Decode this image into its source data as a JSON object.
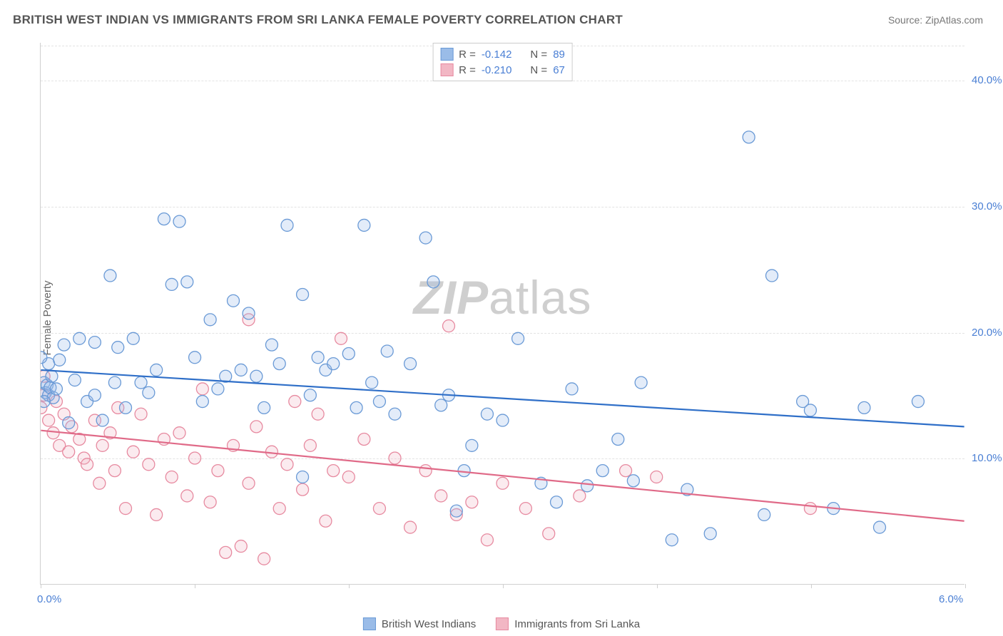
{
  "header": {
    "title": "BRITISH WEST INDIAN VS IMMIGRANTS FROM SRI LANKA FEMALE POVERTY CORRELATION CHART",
    "source": "Source: ZipAtlas.com"
  },
  "watermark": {
    "prefix": "ZIP",
    "suffix": "atlas"
  },
  "chart": {
    "type": "scatter",
    "background_color": "#ffffff",
    "grid_color": "#e3e3e3",
    "axis_color": "#cfcfcf",
    "tick_label_color": "#4a7fd4",
    "ylabel": "Female Poverty",
    "ylabel_color": "#666666",
    "label_fontsize": 15,
    "title_fontsize": 17,
    "xlim": [
      0.0,
      6.0
    ],
    "ylim": [
      0.0,
      43.0
    ],
    "yticks": [
      10.0,
      20.0,
      30.0,
      40.0
    ],
    "ytick_labels": [
      "10.0%",
      "20.0%",
      "30.0%",
      "40.0%"
    ],
    "xticks_minor": [
      0.0,
      1.0,
      2.0,
      3.0,
      4.0,
      5.0,
      6.0
    ],
    "xtick_labels": {
      "left": "0.0%",
      "right": "6.0%"
    },
    "marker_radius": 8.5,
    "marker_stroke_width": 1.3,
    "marker_fill_opacity": 0.28,
    "line_width": 2.2
  },
  "series": [
    {
      "name": "British West Indians",
      "color_fill": "#9abce8",
      "color_stroke": "#6a9ad6",
      "line_color": "#2f6fc8",
      "R": "-0.142",
      "N": "89",
      "trend": {
        "x1": 0.0,
        "y1": 17.0,
        "x2": 6.0,
        "y2": 12.5
      },
      "points": [
        [
          0.02,
          16.0
        ],
        [
          0.03,
          15.2
        ],
        [
          0.04,
          15.8
        ],
        [
          0.05,
          15.0
        ],
        [
          0.06,
          15.6
        ],
        [
          0.07,
          16.5
        ],
        [
          0.08,
          14.8
        ],
        [
          0.05,
          17.5
        ],
        [
          0.1,
          15.5
        ],
        [
          0.15,
          19.0
        ],
        [
          0.18,
          12.8
        ],
        [
          0.25,
          19.5
        ],
        [
          0.3,
          14.5
        ],
        [
          0.35,
          19.2
        ],
        [
          0.4,
          13.0
        ],
        [
          0.45,
          24.5
        ],
        [
          0.5,
          18.8
        ],
        [
          0.55,
          14.0
        ],
        [
          0.6,
          19.5
        ],
        [
          0.65,
          16.0
        ],
        [
          0.7,
          15.2
        ],
        [
          0.8,
          29.0
        ],
        [
          0.85,
          23.8
        ],
        [
          0.9,
          28.8
        ],
        [
          0.95,
          24.0
        ],
        [
          1.0,
          18.0
        ],
        [
          1.05,
          14.5
        ],
        [
          1.1,
          21.0
        ],
        [
          1.15,
          15.5
        ],
        [
          1.2,
          16.5
        ],
        [
          1.25,
          22.5
        ],
        [
          1.3,
          17.0
        ],
        [
          1.35,
          21.5
        ],
        [
          1.4,
          16.5
        ],
        [
          1.45,
          14.0
        ],
        [
          1.55,
          17.5
        ],
        [
          1.6,
          28.5
        ],
        [
          1.7,
          23.0
        ],
        [
          1.75,
          15.0
        ],
        [
          1.8,
          18.0
        ],
        [
          1.85,
          17.0
        ],
        [
          1.7,
          8.5
        ],
        [
          1.9,
          17.5
        ],
        [
          2.0,
          18.3
        ],
        [
          2.05,
          14.0
        ],
        [
          2.1,
          28.5
        ],
        [
          2.15,
          16.0
        ],
        [
          2.25,
          18.5
        ],
        [
          2.3,
          13.5
        ],
        [
          2.4,
          17.5
        ],
        [
          2.5,
          27.5
        ],
        [
          2.55,
          24.0
        ],
        [
          2.6,
          14.2
        ],
        [
          2.65,
          15.0
        ],
        [
          2.7,
          5.8
        ],
        [
          2.75,
          9.0
        ],
        [
          2.8,
          11.0
        ],
        [
          2.9,
          13.5
        ],
        [
          3.0,
          13.0
        ],
        [
          3.1,
          19.5
        ],
        [
          3.25,
          8.0
        ],
        [
          3.35,
          6.5
        ],
        [
          3.45,
          15.5
        ],
        [
          3.55,
          7.8
        ],
        [
          3.65,
          9.0
        ],
        [
          3.75,
          11.5
        ],
        [
          3.85,
          8.2
        ],
        [
          3.9,
          16.0
        ],
        [
          4.1,
          3.5
        ],
        [
          4.2,
          7.5
        ],
        [
          4.35,
          4.0
        ],
        [
          4.6,
          35.5
        ],
        [
          4.7,
          5.5
        ],
        [
          4.75,
          24.5
        ],
        [
          4.95,
          14.5
        ],
        [
          5.0,
          13.8
        ],
        [
          5.15,
          6.0
        ],
        [
          5.35,
          14.0
        ],
        [
          5.45,
          4.5
        ],
        [
          5.7,
          14.5
        ],
        [
          0.0,
          18.0
        ],
        [
          0.12,
          17.8
        ],
        [
          0.22,
          16.2
        ],
        [
          0.48,
          16.0
        ],
        [
          0.75,
          17.0
        ],
        [
          1.5,
          19.0
        ],
        [
          2.2,
          14.5
        ],
        [
          0.02,
          14.5
        ],
        [
          0.35,
          15.0
        ]
      ]
    },
    {
      "name": "Immigrants from Sri Lanka",
      "color_fill": "#f2b7c4",
      "color_stroke": "#e78aa0",
      "line_color": "#e06a88",
      "R": "-0.210",
      "N": "67",
      "trend": {
        "x1": 0.0,
        "y1": 12.2,
        "x2": 6.0,
        "y2": 5.0
      },
      "points": [
        [
          0.02,
          15.0
        ],
        [
          0.0,
          14.0
        ],
        [
          0.05,
          13.0
        ],
        [
          0.08,
          12.0
        ],
        [
          0.1,
          14.5
        ],
        [
          0.12,
          11.0
        ],
        [
          0.15,
          13.5
        ],
        [
          0.18,
          10.5
        ],
        [
          0.2,
          12.5
        ],
        [
          0.25,
          11.5
        ],
        [
          0.28,
          10.0
        ],
        [
          0.3,
          9.5
        ],
        [
          0.35,
          13.0
        ],
        [
          0.38,
          8.0
        ],
        [
          0.4,
          11.0
        ],
        [
          0.45,
          12.0
        ],
        [
          0.48,
          9.0
        ],
        [
          0.5,
          14.0
        ],
        [
          0.55,
          6.0
        ],
        [
          0.6,
          10.5
        ],
        [
          0.65,
          13.5
        ],
        [
          0.7,
          9.5
        ],
        [
          0.75,
          5.5
        ],
        [
          0.8,
          11.5
        ],
        [
          0.85,
          8.5
        ],
        [
          0.9,
          12.0
        ],
        [
          0.95,
          7.0
        ],
        [
          1.0,
          10.0
        ],
        [
          1.05,
          15.5
        ],
        [
          1.1,
          6.5
        ],
        [
          1.15,
          9.0
        ],
        [
          1.2,
          2.5
        ],
        [
          1.25,
          11.0
        ],
        [
          1.3,
          3.0
        ],
        [
          1.35,
          21.0
        ],
        [
          1.35,
          8.0
        ],
        [
          1.4,
          12.5
        ],
        [
          1.45,
          2.0
        ],
        [
          1.5,
          10.5
        ],
        [
          1.55,
          6.0
        ],
        [
          1.6,
          9.5
        ],
        [
          1.65,
          14.5
        ],
        [
          1.7,
          7.5
        ],
        [
          1.75,
          11.0
        ],
        [
          1.8,
          13.5
        ],
        [
          1.85,
          5.0
        ],
        [
          1.9,
          9.0
        ],
        [
          1.95,
          19.5
        ],
        [
          2.0,
          8.5
        ],
        [
          2.1,
          11.5
        ],
        [
          2.2,
          6.0
        ],
        [
          2.3,
          10.0
        ],
        [
          2.4,
          4.5
        ],
        [
          2.5,
          9.0
        ],
        [
          2.6,
          7.0
        ],
        [
          2.65,
          20.5
        ],
        [
          2.7,
          5.5
        ],
        [
          2.8,
          6.5
        ],
        [
          2.9,
          3.5
        ],
        [
          3.0,
          8.0
        ],
        [
          3.15,
          6.0
        ],
        [
          3.3,
          4.0
        ],
        [
          3.5,
          7.0
        ],
        [
          3.8,
          9.0
        ],
        [
          4.0,
          8.5
        ],
        [
          5.0,
          6.0
        ],
        [
          0.02,
          16.5
        ]
      ]
    }
  ],
  "legend_top": {
    "r_label": "R =",
    "n_label": "N ="
  },
  "legend_bottom": {
    "items": [
      "British West Indians",
      "Immigrants from Sri Lanka"
    ]
  }
}
